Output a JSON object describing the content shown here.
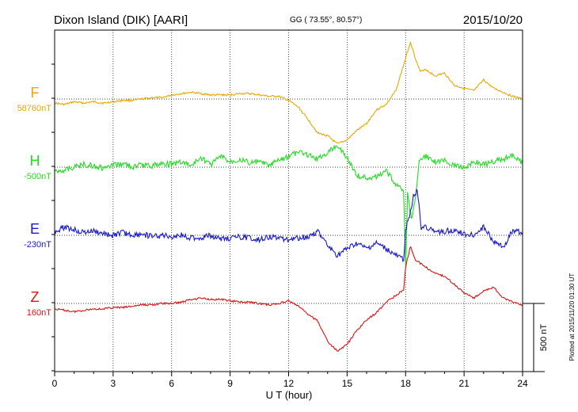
{
  "header": {
    "station": "Dixon Island (DIK)  [AARI]",
    "coords": "GG ( 73.55°,  80.57°)",
    "date": "2015/10/20"
  },
  "footer": {
    "plotted": "Plotted at 2015/11/20 01:30 UT"
  },
  "chart_data": {
    "type": "line",
    "xlabel": "U T (hour)",
    "xlim": [
      0,
      24
    ],
    "xticks": [
      0,
      3,
      6,
      9,
      12,
      15,
      18,
      21,
      24
    ],
    "scale_bar": {
      "label": "500 nT",
      "value_nT": 500
    },
    "series": [
      {
        "name": "F",
        "baseline_label": "58760nT",
        "color": "#e8a800",
        "x": [
          0,
          0.5,
          1,
          1.5,
          2,
          2.5,
          3,
          3.5,
          4,
          4.5,
          5,
          5.5,
          6,
          6.5,
          7,
          7.5,
          8,
          8.5,
          9,
          9.5,
          10,
          10.5,
          11,
          11.5,
          12,
          12.5,
          13,
          13.5,
          14,
          14.5,
          15,
          15.5,
          16,
          16.5,
          17,
          17.5,
          18,
          18.25,
          18.5,
          18.75,
          19,
          19.5,
          20,
          20.5,
          21,
          21.5,
          22,
          22.5,
          23,
          23.5,
          24
        ],
        "y": [
          -30,
          -40,
          -20,
          -30,
          -20,
          -30,
          -20,
          -10,
          -10,
          0,
          10,
          10,
          30,
          40,
          50,
          40,
          30,
          30,
          30,
          40,
          40,
          30,
          20,
          20,
          -10,
          -60,
          -150,
          -250,
          -270,
          -330,
          -300,
          -230,
          -180,
          -80,
          -40,
          60,
          300,
          420,
          300,
          200,
          220,
          170,
          190,
          100,
          80,
          60,
          140,
          80,
          50,
          20,
          0
        ]
      },
      {
        "name": "H",
        "baseline_label": "-500nT",
        "color": "#22dd22",
        "x": [
          0,
          0.5,
          1,
          1.5,
          2,
          2.5,
          3,
          3.5,
          4,
          4.5,
          5,
          5.5,
          6,
          6.5,
          7,
          7.5,
          8,
          8.5,
          9,
          9.5,
          10,
          10.5,
          11,
          11.5,
          12,
          12.5,
          13,
          13.5,
          14,
          14.5,
          15,
          15.5,
          16,
          16.5,
          17,
          17.5,
          17.9,
          18,
          18.1,
          18.3,
          18.5,
          18.7,
          19,
          19.5,
          20,
          20.5,
          21,
          21.5,
          22,
          22.5,
          23,
          23.5,
          24
        ],
        "y": [
          -30,
          -20,
          0,
          20,
          10,
          -10,
          10,
          30,
          0,
          20,
          10,
          30,
          20,
          40,
          10,
          70,
          20,
          80,
          40,
          60,
          30,
          40,
          10,
          50,
          80,
          110,
          90,
          60,
          110,
          160,
          70,
          -60,
          -80,
          -70,
          -30,
          -120,
          -180,
          -750,
          -200,
          -380,
          -230,
          30,
          80,
          40,
          50,
          10,
          0,
          40,
          20,
          40,
          60,
          80,
          30
        ]
      },
      {
        "name": "E",
        "baseline_label": "-230nT",
        "color": "#1a1acc",
        "x": [
          0,
          0.5,
          1,
          1.5,
          2,
          2.5,
          3,
          3.5,
          4,
          4.5,
          5,
          5.5,
          6,
          6.5,
          7,
          7.5,
          8,
          8.5,
          9,
          9.5,
          10,
          10.5,
          11,
          11.5,
          12,
          12.5,
          13,
          13.5,
          14,
          14.5,
          15,
          15.5,
          16,
          16.5,
          17,
          17.5,
          17.9,
          18,
          18.2,
          18.4,
          18.6,
          18.8,
          19,
          19.5,
          20,
          20.5,
          21,
          21.5,
          22,
          22.5,
          23,
          23.5,
          24
        ],
        "y": [
          30,
          60,
          40,
          20,
          30,
          10,
          0,
          20,
          0,
          10,
          -10,
          0,
          -10,
          0,
          -20,
          -20,
          0,
          -30,
          -20,
          -10,
          -20,
          -30,
          -10,
          -20,
          -30,
          -20,
          -10,
          30,
          -80,
          -150,
          -100,
          -60,
          -100,
          -60,
          -100,
          -150,
          -180,
          40,
          150,
          280,
          330,
          50,
          70,
          20,
          30,
          40,
          10,
          0,
          60,
          -40,
          -90,
          40,
          20
        ]
      },
      {
        "name": "Z",
        "baseline_label": "160nT",
        "color": "#dd1111",
        "x": [
          0,
          0.5,
          1,
          1.5,
          2,
          2.5,
          3,
          3.5,
          4,
          4.5,
          5,
          5.5,
          6,
          6.5,
          7,
          7.5,
          8,
          8.5,
          9,
          9.5,
          10,
          10.5,
          11,
          11.5,
          12,
          12.5,
          13,
          13.5,
          14,
          14.5,
          15,
          15.5,
          16,
          16.5,
          17,
          17.5,
          17.9,
          18,
          18.25,
          18.5,
          19,
          19.5,
          20,
          20.5,
          21,
          21.5,
          22,
          22.5,
          23,
          23.5,
          24
        ],
        "y": [
          -40,
          -50,
          -60,
          -50,
          -40,
          -40,
          -30,
          -30,
          -20,
          -10,
          -10,
          0,
          0,
          10,
          30,
          40,
          30,
          30,
          20,
          10,
          10,
          0,
          -10,
          0,
          20,
          -20,
          -80,
          -130,
          -280,
          -350,
          -300,
          -200,
          -120,
          -70,
          10,
          60,
          100,
          270,
          420,
          320,
          270,
          220,
          200,
          140,
          80,
          40,
          90,
          120,
          40,
          10,
          -10
        ]
      }
    ]
  }
}
